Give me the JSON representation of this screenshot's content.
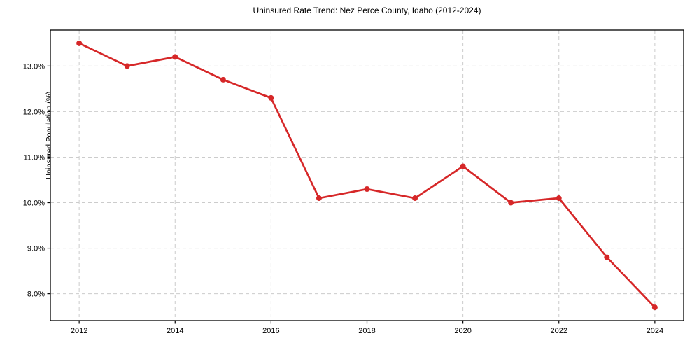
{
  "figure": {
    "background_color": "#ffffff"
  },
  "chart_data": {
    "type": "line",
    "title": "Uninsured Rate Trend: Nez Perce County, Idaho (2012-2024)",
    "xlabel": "",
    "ylabel": "Uninsured Population (%)",
    "x": [
      2012,
      2013,
      2014,
      2015,
      2016,
      2017,
      2018,
      2019,
      2020,
      2021,
      2022,
      2023,
      2024
    ],
    "values": [
      13.5,
      13.0,
      13.2,
      12.7,
      12.3,
      10.1,
      10.3,
      10.1,
      10.8,
      10.0,
      10.1,
      8.8,
      7.7
    ],
    "xlim": [
      2011.4,
      2024.6
    ],
    "ylim": [
      7.41,
      13.79
    ],
    "x_ticks": [
      2012,
      2014,
      2016,
      2018,
      2020,
      2022,
      2024
    ],
    "x_tick_labels": [
      "2012",
      "2014",
      "2016",
      "2018",
      "2020",
      "2022",
      "2024"
    ],
    "y_ticks": [
      8.0,
      9.0,
      10.0,
      11.0,
      12.0,
      13.0
    ],
    "y_tick_labels": [
      "8.0%",
      "9.0%",
      "10.0%",
      "11.0%",
      "12.0%",
      "13.0%"
    ],
    "grid": true,
    "grid_style": "dashed",
    "legend": false,
    "line_color": "#d62728",
    "marker": "circle",
    "grid_color": "#cccccc",
    "axis_color": "#000000",
    "line_width": 2.7,
    "marker_radius": 4
  }
}
